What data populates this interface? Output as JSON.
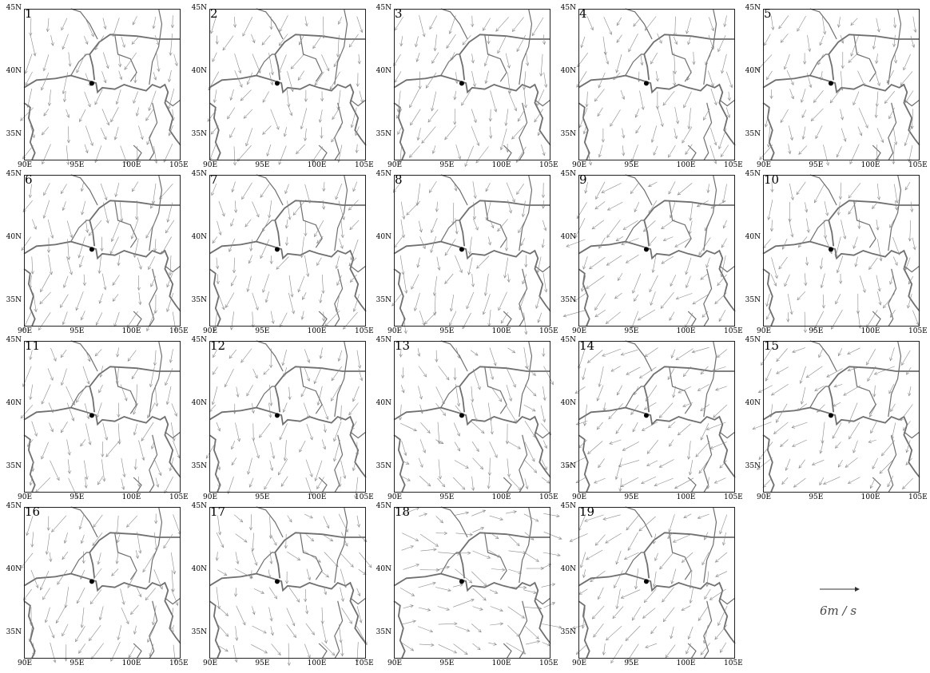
{
  "figure": {
    "lat_ticks": [
      "45N",
      "40N",
      "35N"
    ],
    "lon_ticks": [
      "90E",
      "95E",
      "100E",
      "105E"
    ],
    "extent": {
      "lon_min": 90,
      "lon_max": 105,
      "lat_min": 33,
      "lat_max": 45
    },
    "station": {
      "lon": 96.5,
      "lat": 39.1
    },
    "colors": {
      "frame": "#222222",
      "border": "#6f6f6f",
      "vector": "#8a8a8a",
      "station": "#000000"
    },
    "scale_vector": {
      "label": "6m / s",
      "speed_ms": 6
    }
  },
  "panels": [
    {
      "label": "1",
      "flow": "s"
    },
    {
      "label": "2",
      "flow": "s"
    },
    {
      "label": "3",
      "flow": "s"
    },
    {
      "label": "4",
      "flow": "s"
    },
    {
      "label": "5",
      "flow": "s"
    },
    {
      "label": "6",
      "flow": "s"
    },
    {
      "label": "7",
      "flow": "s"
    },
    {
      "label": "8",
      "flow": "s"
    },
    {
      "label": "9",
      "flow": "sw"
    },
    {
      "label": "10",
      "flow": "s"
    },
    {
      "label": "11",
      "flow": "s"
    },
    {
      "label": "12",
      "flow": "s"
    },
    {
      "label": "13",
      "flow": "se"
    },
    {
      "label": "14",
      "flow": "sw"
    },
    {
      "label": "15",
      "flow": "sw"
    },
    {
      "label": "16",
      "flow": "s"
    },
    {
      "label": "17",
      "flow": "se"
    },
    {
      "label": "18",
      "flow": "e"
    },
    {
      "label": "19",
      "flow": "sw"
    }
  ]
}
